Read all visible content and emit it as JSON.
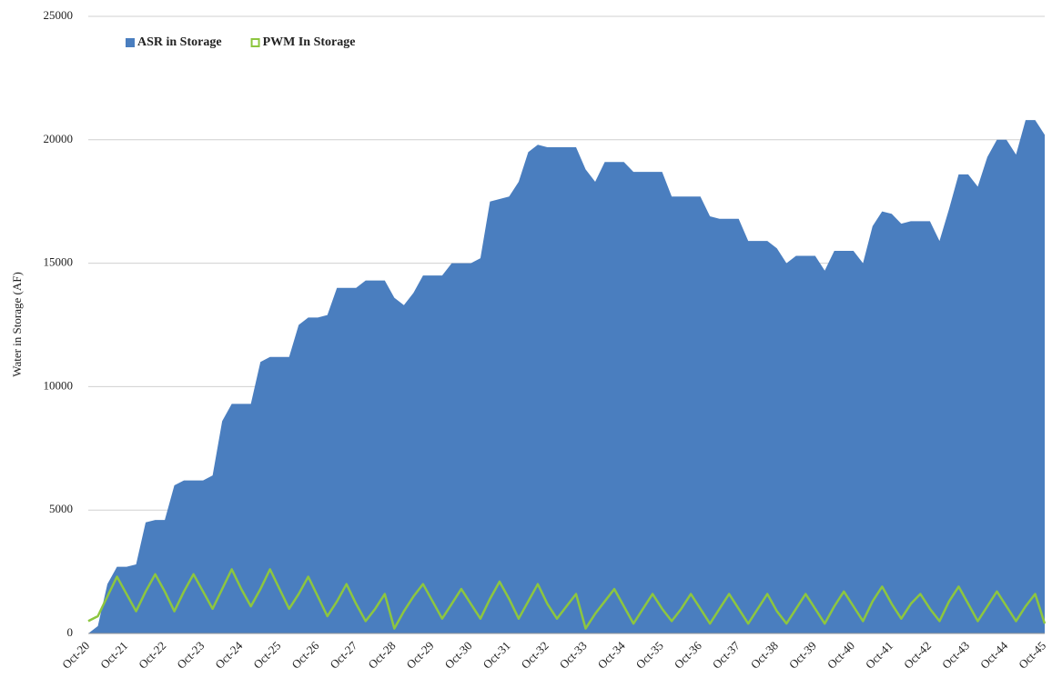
{
  "chart_data": {
    "type": "area",
    "y_label": "Water in Storage (AF)",
    "categories": [
      "Oct-20",
      null,
      null,
      null,
      "Oct-21",
      null,
      null,
      null,
      "Oct-22",
      null,
      null,
      null,
      "Oct-23",
      null,
      null,
      null,
      "Oct-24",
      null,
      null,
      null,
      "Oct-25",
      null,
      null,
      null,
      "Oct-26",
      null,
      null,
      null,
      "Oct-27",
      null,
      null,
      null,
      "Oct-28",
      null,
      null,
      null,
      "Oct-29",
      null,
      null,
      null,
      "Oct-30",
      null,
      null,
      null,
      "Oct-31",
      null,
      null,
      null,
      "Oct-32",
      null,
      null,
      null,
      "Oct-33",
      null,
      null,
      null,
      "Oct-34",
      null,
      null,
      null,
      "Oct-35",
      null,
      null,
      null,
      "Oct-36",
      null,
      null,
      null,
      "Oct-37",
      null,
      null,
      null,
      "Oct-38",
      null,
      null,
      null,
      "Oct-39",
      null,
      null,
      null,
      "Oct-40",
      null,
      null,
      null,
      "Oct-41",
      null,
      null,
      null,
      "Oct-42",
      null,
      null,
      null,
      "Oct-43",
      null,
      null,
      null,
      "Oct-44",
      null,
      null,
      null,
      "Oct-45"
    ],
    "series": [
      {
        "name": "ASR in Storage",
        "kind": "area",
        "color": "#4a7ebf",
        "values": [
          0,
          300,
          2000,
          2700,
          2700,
          2800,
          4500,
          4600,
          4600,
          6000,
          6200,
          6200,
          6200,
          6400,
          8600,
          9300,
          9300,
          9300,
          11000,
          11200,
          11200,
          11200,
          12500,
          12800,
          12800,
          12900,
          14000,
          14000,
          14000,
          14300,
          14300,
          14300,
          13600,
          13300,
          13800,
          14500,
          14500,
          14500,
          15000,
          15000,
          15000,
          15200,
          17500,
          17600,
          17700,
          18300,
          19500,
          19800,
          19700,
          19700,
          19700,
          19700,
          18800,
          18300,
          19100,
          19100,
          19100,
          18700,
          18700,
          18700,
          18700,
          17700,
          17700,
          17700,
          17700,
          16900,
          16800,
          16800,
          16800,
          15900,
          15900,
          15900,
          15600,
          15000,
          15300,
          15300,
          15300,
          14700,
          15500,
          15500,
          15500,
          15000,
          16500,
          17100,
          17000,
          16600,
          16700,
          16700,
          16700,
          15900,
          17200,
          18600,
          18600,
          18100,
          19300,
          20000,
          20000,
          19400,
          20800,
          20800,
          20200
        ]
      },
      {
        "name": "PWM In Storage",
        "kind": "line",
        "color": "#8dc63f",
        "values": [
          500,
          700,
          1500,
          2300,
          1600,
          900,
          1700,
          2400,
          1700,
          900,
          1700,
          2400,
          1700,
          1000,
          1800,
          2600,
          1800,
          1100,
          1800,
          2600,
          1800,
          1000,
          1600,
          2300,
          1500,
          700,
          1300,
          2000,
          1200,
          500,
          1000,
          1600,
          200,
          900,
          1500,
          2000,
          1300,
          600,
          1200,
          1800,
          1200,
          600,
          1400,
          2100,
          1400,
          600,
          1300,
          2000,
          1200,
          600,
          1100,
          1600,
          200,
          800,
          1300,
          1800,
          1100,
          400,
          1000,
          1600,
          1000,
          500,
          1000,
          1600,
          1000,
          400,
          1000,
          1600,
          1000,
          400,
          1000,
          1600,
          900,
          400,
          1000,
          1600,
          1000,
          400,
          1100,
          1700,
          1100,
          500,
          1300,
          1900,
          1200,
          600,
          1200,
          1600,
          1000,
          500,
          1300,
          1900,
          1200,
          500,
          1100,
          1700,
          1100,
          500,
          1100,
          1600,
          400
        ]
      }
    ],
    "ylim": [
      0,
      25000
    ],
    "yticks": [
      0,
      5000,
      10000,
      15000,
      20000,
      25000
    ],
    "grid": true,
    "legend": "upper left"
  }
}
